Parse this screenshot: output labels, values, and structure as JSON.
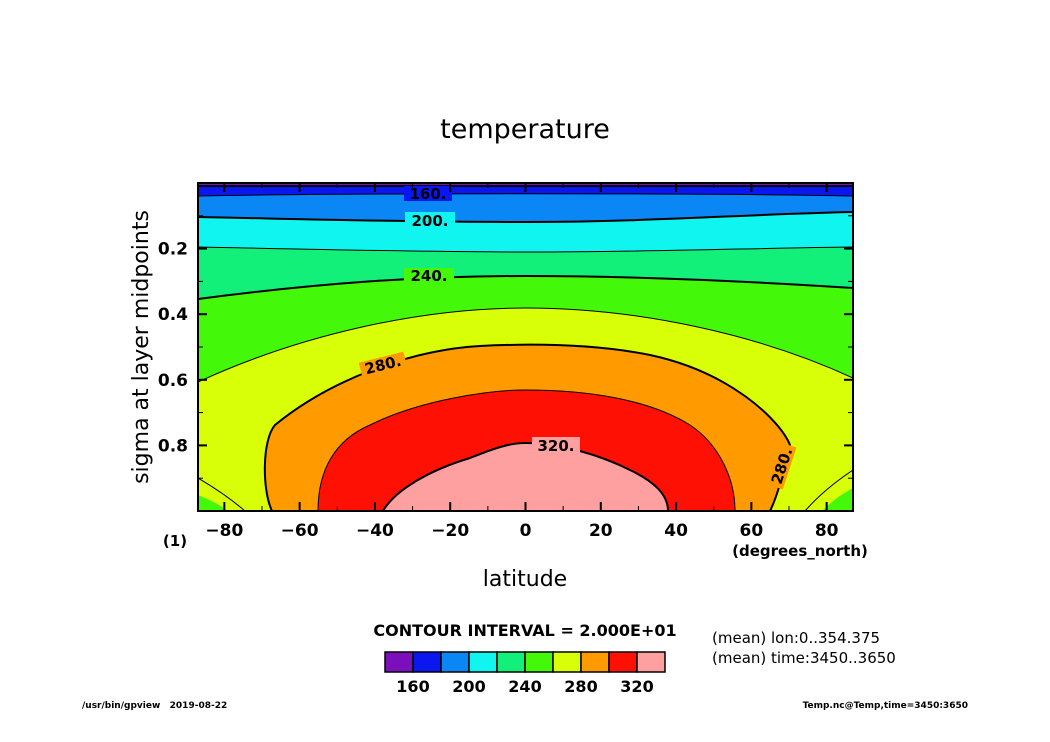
{
  "chart_data": {
    "type": "contour",
    "title": "temperature",
    "xlabel": "latitude",
    "xunit": "(degrees_north)",
    "ylabel": "sigma at layer midpoints",
    "yunit": "(1)",
    "x_ticks": [
      "-80",
      "-60",
      "-40",
      "-20",
      "0",
      "20",
      "40",
      "60",
      "80"
    ],
    "x_tick_values": [
      -80,
      -60,
      -40,
      -20,
      0,
      20,
      40,
      60,
      80
    ],
    "y_ticks": [
      "0.2",
      "0.4",
      "0.6",
      "0.8"
    ],
    "y_tick_values": [
      0.2,
      0.4,
      0.6,
      0.8
    ],
    "xlim": [
      -87,
      87
    ],
    "ylim": [
      0,
      1
    ],
    "y_inverted": true,
    "contour_interval_text": "CONTOUR INTERVAL = 2.000E+01",
    "contour_levels": [
      160,
      180,
      200,
      220,
      240,
      260,
      280,
      300,
      320
    ],
    "contour_labels": [
      "160.",
      "200.",
      "240.",
      "280.",
      "320.",
      "280."
    ],
    "colorbar": {
      "colors": [
        "#7a0fbb",
        "#0a18ef",
        "#0a86f5",
        "#10f5f0",
        "#12f07a",
        "#44f80a",
        "#d9ff08",
        "#ff9a00",
        "#ff1005",
        "#ffa0a0"
      ],
      "tick_labels": [
        "160",
        "200",
        "240",
        "280",
        "320"
      ]
    },
    "notes": [
      "(mean) lon:0..354.375",
      "(mean) time:3450..3650"
    ],
    "footer_left": "/usr/bin/gpview   2019-08-22",
    "footer_right": "Temp.nc@Temp,time=3450:3650"
  }
}
